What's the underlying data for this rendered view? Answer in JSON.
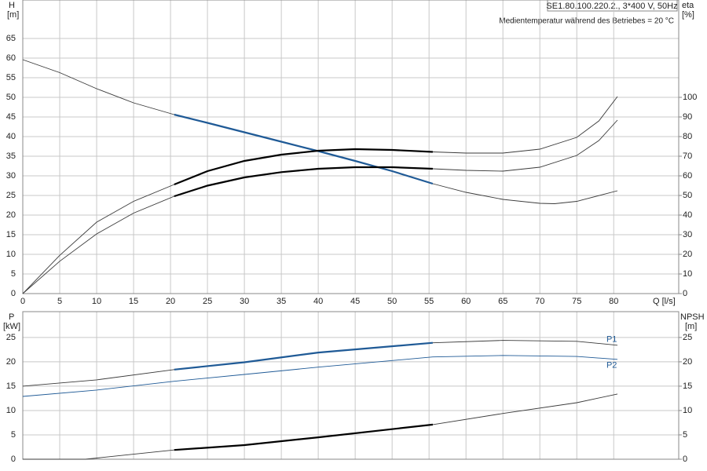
{
  "chart_data": [
    {
      "type": "line",
      "model": "SE1.80.100.220.2., 3*400 V, 50Hz",
      "subtitle": "Medientemperatur während des Betriebes = 20 °C",
      "y_label": "H",
      "y_unit": "[m]",
      "y2_label": "eta",
      "y2_unit": "[%]",
      "x_label": "Q [l/s]",
      "xlim": [
        0,
        88.8
      ],
      "xticks": [
        0,
        5,
        10,
        15,
        20,
        25,
        30,
        35,
        40,
        45,
        50,
        55,
        60,
        65,
        70,
        75,
        80
      ],
      "ylim": [
        0,
        74.8
      ],
      "yticks": [
        0,
        5,
        10,
        15,
        20,
        25,
        30,
        35,
        40,
        45,
        50,
        55,
        60,
        65
      ],
      "y2lim": [
        0,
        149.6
      ],
      "y2ticks": [
        0,
        10,
        20,
        30,
        40,
        50,
        60,
        70,
        80,
        90,
        100
      ],
      "grid": true,
      "line_color": "#3a3a3a",
      "highlight_range": [
        20.5,
        55.5
      ],
      "series": [
        {
          "color": "#1f5a96",
          "highlight": true,
          "axis": "y",
          "x": [
            0,
            5,
            10,
            15,
            20.5,
            25,
            30,
            35,
            40,
            45,
            50,
            55.5,
            60,
            65,
            70,
            72,
            75,
            80.5
          ],
          "values": [
            59.6,
            56.3,
            52.2,
            48.6,
            45.6,
            43.5,
            41.1,
            38.7,
            36.3,
            33.8,
            31.2,
            28.0,
            25.8,
            24.0,
            23.0,
            22.9,
            23.5,
            26.2
          ]
        },
        {
          "color": "#000000",
          "highlight": true,
          "axis": "y2",
          "x": [
            0,
            5,
            10,
            15,
            20.5,
            25,
            30,
            35,
            40,
            45,
            50,
            55.5,
            60,
            65,
            70,
            75,
            78,
            80.5
          ],
          "values": [
            0,
            19.5,
            36.4,
            47.0,
            55.6,
            62.4,
            67.6,
            70.8,
            72.8,
            73.6,
            73.2,
            72.2,
            71.6,
            71.6,
            73.6,
            79.6,
            88.0,
            100.4
          ]
        },
        {
          "color": "#000000",
          "highlight": true,
          "axis": "y2",
          "x": [
            0,
            5,
            10,
            15,
            20.5,
            25,
            30,
            35,
            40,
            45,
            50,
            55.5,
            60,
            65,
            70,
            75,
            78,
            80.5
          ],
          "values": [
            0,
            16.5,
            30.4,
            41.0,
            49.6,
            55.0,
            59.2,
            61.9,
            63.6,
            64.4,
            64.4,
            63.6,
            62.8,
            62.4,
            64.4,
            70.4,
            78.0,
            88.4
          ]
        }
      ]
    },
    {
      "type": "line",
      "y_label": "P",
      "y_unit": "[kW]",
      "y2_label": "NPSH",
      "y2_unit": "[m]",
      "xlim": [
        0,
        88.8
      ],
      "ylim": [
        0,
        30.3
      ],
      "yticks": [
        0,
        5,
        10,
        15,
        20,
        25
      ],
      "y2lim": [
        0,
        30.3
      ],
      "y2ticks": [
        0,
        5,
        10,
        15,
        20,
        25
      ],
      "grid": true,
      "line_color": "#3a3a3a",
      "highlight_range": [
        20.5,
        55.5
      ],
      "series": [
        {
          "name": "P1",
          "color": "#1f5a96",
          "highlight": true,
          "axis": "y",
          "x": [
            0,
            10,
            20.5,
            30,
            40,
            55.5,
            65,
            75,
            80.5
          ],
          "values": [
            15.0,
            16.3,
            18.4,
            19.9,
            21.9,
            23.9,
            24.4,
            24.2,
            23.4
          ]
        },
        {
          "name": "P2",
          "color": "#1f5a96",
          "highlight": false,
          "axis": "y",
          "x": [
            0,
            10,
            20.5,
            30,
            40,
            55.5,
            65,
            75,
            80.5
          ],
          "values": [
            12.9,
            14.2,
            16.0,
            17.4,
            18.9,
            21.0,
            21.3,
            21.1,
            20.5
          ]
        },
        {
          "color": "#000000",
          "highlight": true,
          "axis": "y2",
          "x": [
            0,
            8.5,
            20.5,
            30,
            40,
            55.5,
            65,
            75,
            80.5
          ],
          "values": [
            0,
            0,
            1.9,
            2.9,
            4.5,
            7.1,
            9.4,
            11.6,
            13.4
          ]
        }
      ]
    }
  ]
}
